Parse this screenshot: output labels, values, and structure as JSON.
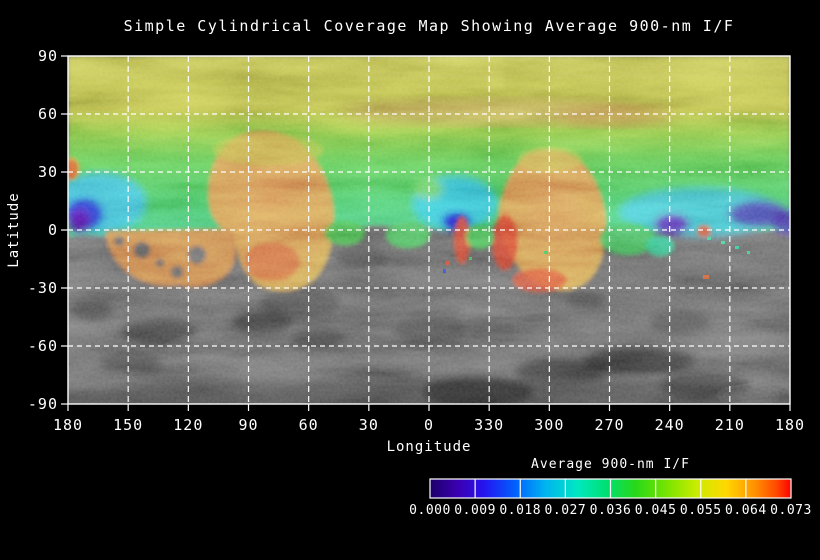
{
  "title": "Simple Cylindrical Coverage Map Showing Average 900-nm I/F",
  "axes": {
    "x": {
      "label": "Longitude",
      "ticks": [
        "180",
        "150",
        "120",
        "90",
        "60",
        "30",
        "0",
        "330",
        "300",
        "270",
        "240",
        "210",
        "180"
      ]
    },
    "y": {
      "label": "Latitude",
      "ticks": [
        "90",
        "60",
        "30",
        "0",
        "-30",
        "-60",
        "-90"
      ]
    }
  },
  "colorbar": {
    "title": "Average 900-nm I/F",
    "tick_labels": [
      "0.000",
      "0.009",
      "0.018",
      "0.027",
      "0.036",
      "0.045",
      "0.055",
      "0.064",
      "0.073"
    ],
    "gradient_hex": [
      "#1c0068",
      "#3c00b4",
      "#2414f0",
      "#0064ff",
      "#00b4f0",
      "#00e8c0",
      "#00e070",
      "#28d818",
      "#7ce400",
      "#ccec00",
      "#ffd800",
      "#ff9000",
      "#ff4800",
      "#ff0000"
    ]
  },
  "chart_data": {
    "type": "heatmap",
    "title": "Simple Cylindrical Coverage Map Showing Average 900-nm I/F",
    "xlabel": "Longitude",
    "ylabel": "Latitude",
    "x_tick_values_deg": [
      180,
      150,
      120,
      90,
      60,
      30,
      0,
      330,
      300,
      270,
      240,
      210,
      180
    ],
    "x_span_deg": 360,
    "y_range_deg": [
      -90,
      90
    ],
    "grid": "white dashed lines every 30 degrees",
    "value_label": "Average 900-nm I/F",
    "value_range": [
      0.0,
      0.073
    ],
    "colorbar_ticks": [
      0.0,
      0.009,
      0.018,
      0.027,
      0.036,
      0.045,
      0.055,
      0.064,
      0.073
    ],
    "base_layer": "grayscale surface mosaic where no 900-nm coverage exists (mostly latitudes below ~0 deg)",
    "coverage_regions": [
      {
        "name": "north-polar-olive-band",
        "lat": [
          60,
          90
        ],
        "lon": "all",
        "approx_value": 0.047
      },
      {
        "name": "mid-north-green-band",
        "lat": [
          25,
          60
        ],
        "lon": "all",
        "approx_value": 0.04
      },
      {
        "name": "equatorial-green-cyan-band",
        "lat": [
          0,
          25
        ],
        "lon": "all",
        "approx_value": 0.031
      },
      {
        "name": "tan-streak",
        "lat": [
          55,
          62
        ],
        "lon": [
          15,
          310
        ],
        "approx_value": 0.052
      },
      {
        "name": "high-value-lobe-west",
        "lat": [
          -30,
          50
        ],
        "lon": [
          110,
          47
        ],
        "approx_value": 0.062
      },
      {
        "name": "high-value-satellite-west",
        "lat": [
          -28,
          0
        ],
        "lon": [
          161,
          97
        ],
        "approx_value": 0.058,
        "note": "contains small uncovered gray holes"
      },
      {
        "name": "high-value-lobe-east",
        "lat": [
          -31,
          38
        ],
        "lon": [
          327,
          267
        ],
        "approx_value": 0.062,
        "note": "red fringe ~0.071 on west and south edges"
      },
      {
        "name": "low-value-patch-west-edge",
        "lat": [
          0,
          16
        ],
        "lon": [
          180,
          166
        ],
        "approx_value": 0.012
      },
      {
        "name": "low-value-patch-central",
        "lat": [
          0,
          15
        ],
        "lon": [
          359,
          342
        ],
        "approx_value": 0.014
      },
      {
        "name": "low-value-band-east",
        "lat": [
          -5,
          10
        ],
        "lon": [
          243,
          182
        ],
        "approx_value": 0.015
      },
      {
        "name": "red-sliver-central",
        "lat": [
          -8,
          5
        ],
        "lon": [
          349,
          345
        ],
        "approx_value": 0.071
      },
      {
        "name": "uncovered-gray",
        "lat": [
          -90,
          0
        ],
        "lon": "most longitudes outside lobes",
        "approx_value": null
      }
    ]
  }
}
